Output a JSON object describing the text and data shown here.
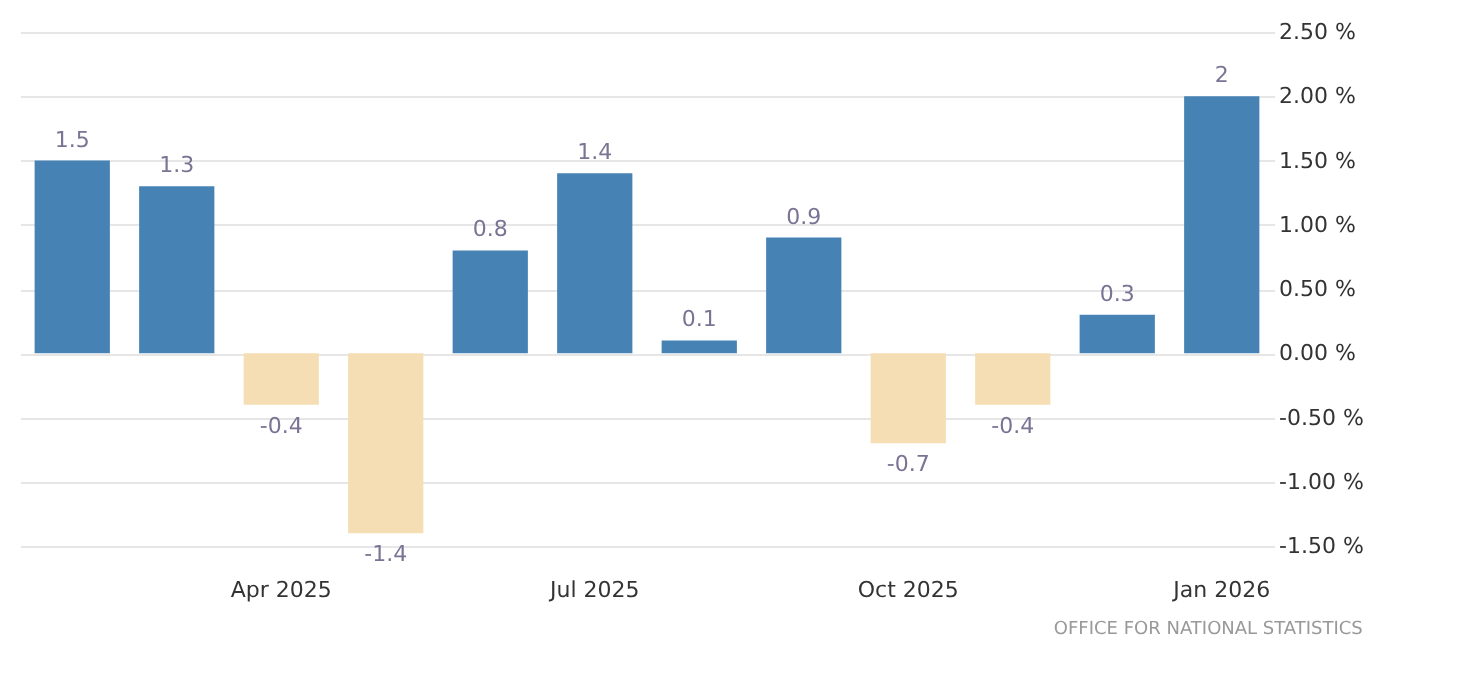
{
  "chart_data": {
    "type": "bar",
    "categories": [
      null,
      null,
      "Apr 2025",
      null,
      null,
      "Jul 2025",
      null,
      null,
      "Oct 2025",
      null,
      null,
      "Jan 2026"
    ],
    "values": [
      1.5,
      1.3,
      -0.4,
      -1.4,
      0.8,
      1.4,
      0.1,
      0.9,
      -0.7,
      -0.4,
      0.3,
      2
    ],
    "colors": [
      "#4682b4",
      "#4682b4",
      "#f5deb3",
      "#f5deb3",
      "#4682b4",
      "#4682b4",
      "#4682b4",
      "#4682b4",
      "#f5deb3",
      "#f5deb3",
      "#4682b4",
      "#4682b4"
    ],
    "ylim": [
      -1.5,
      2.5
    ],
    "yticks": [
      {
        "value": -1.5,
        "label": "-1.50 %"
      },
      {
        "value": -1,
        "label": "-1.00 %"
      },
      {
        "value": -0.5,
        "label": "-0.50 %"
      },
      {
        "value": 0,
        "label": "0.00 %"
      },
      {
        "value": 0.5,
        "label": "0.50 %"
      },
      {
        "value": 1,
        "label": "1.00 %"
      },
      {
        "value": 1.5,
        "label": "1.50 %"
      },
      {
        "value": 2,
        "label": "2.00 %"
      },
      {
        "value": 2.5,
        "label": "2.50 %"
      }
    ],
    "grid": "y",
    "data_labels": true,
    "annotations": [
      "OFFICE FOR NATIONAL STATISTICS"
    ]
  }
}
